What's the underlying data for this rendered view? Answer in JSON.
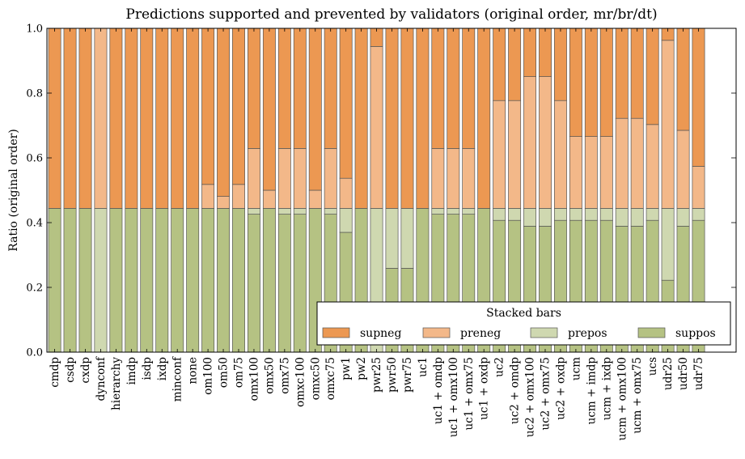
{
  "chart_data": {
    "type": "bar",
    "stacked": true,
    "title": "Predictions supported and prevented by validators (original order, mr/br/dt)",
    "xlabel": "",
    "ylabel": "Ratio (original order)",
    "ylim": [
      0,
      1
    ],
    "yticks": [
      "0.0",
      "0.2",
      "0.4",
      "0.6",
      "0.8",
      "1.0"
    ],
    "grid": false,
    "legend": {
      "title": "Stacked bars",
      "placement": "bottom-right"
    },
    "categories": [
      "cmdp",
      "csdp",
      "cxdp",
      "dynconf",
      "hierarchy",
      "imdp",
      "isdp",
      "ixdp",
      "minconf",
      "none",
      "om100",
      "om50",
      "om75",
      "omx100",
      "omx50",
      "omx75",
      "omxc100",
      "omxc50",
      "omxc75",
      "pw1",
      "pw2",
      "pwr25",
      "pwr50",
      "pwr75",
      "uc1",
      "uc1 + omdp",
      "uc1 + omx100",
      "uc1 + omx75",
      "uc1 + oxdp",
      "uc2",
      "uc2 + omdp",
      "uc2 + omx100",
      "uc2 + omx75",
      "uc2 + oxdp",
      "ucm",
      "ucm + imdp",
      "ucm + ixdp",
      "ucm + omx100",
      "ucm + omx75",
      "ucs",
      "udr25",
      "udr50",
      "udr75"
    ],
    "series": [
      {
        "name": "suppos",
        "color": "#b5c283",
        "values": [
          0.444,
          0.444,
          0.444,
          0,
          0.444,
          0.444,
          0.444,
          0.444,
          0.444,
          0.444,
          0.444,
          0.444,
          0.444,
          0.426,
          0.444,
          0.426,
          0.426,
          0.444,
          0.426,
          0.37,
          0.444,
          0,
          0.259,
          0.259,
          0.444,
          0.426,
          0.426,
          0.426,
          0.444,
          0.407,
          0.407,
          0.389,
          0.389,
          0.407,
          0.407,
          0.407,
          0.407,
          0.389,
          0.389,
          0.407,
          0.222,
          0.389,
          0.407
        ]
      },
      {
        "name": "prepos",
        "color": "#cfd8b0",
        "values": [
          0,
          0,
          0,
          0.444,
          0,
          0,
          0,
          0,
          0,
          0,
          0,
          0,
          0,
          0.018,
          0,
          0.018,
          0.018,
          0,
          0.018,
          0.074,
          0,
          0.444,
          0.185,
          0.185,
          0,
          0.018,
          0.018,
          0.018,
          0,
          0.037,
          0.037,
          0.055,
          0.055,
          0.037,
          0.037,
          0.037,
          0.037,
          0.055,
          0.055,
          0.037,
          0.222,
          0.055,
          0.037
        ]
      },
      {
        "name": "preneg",
        "color": "#f3b889",
        "values": [
          0,
          0,
          0,
          0.556,
          0,
          0,
          0,
          0,
          0,
          0,
          0.074,
          0.037,
          0.074,
          0.185,
          0.056,
          0.185,
          0.185,
          0.056,
          0.185,
          0.093,
          0,
          0.5,
          0,
          0,
          0,
          0.185,
          0.185,
          0.185,
          0,
          0.333,
          0.333,
          0.407,
          0.407,
          0.333,
          0.222,
          0.222,
          0.222,
          0.278,
          0.278,
          0.259,
          0.519,
          0.241,
          0.13
        ]
      },
      {
        "name": "supneg",
        "color": "#ec9852",
        "values": [
          0.556,
          0.556,
          0.556,
          0,
          0.556,
          0.556,
          0.556,
          0.556,
          0.556,
          0.556,
          0.482,
          0.519,
          0.482,
          0.371,
          0.5,
          0.371,
          0.371,
          0.5,
          0.371,
          0.463,
          0.556,
          0.056,
          0.556,
          0.556,
          0.556,
          0.371,
          0.371,
          0.371,
          0.556,
          0.223,
          0.223,
          0.149,
          0.149,
          0.223,
          0.334,
          0.334,
          0.334,
          0.278,
          0.278,
          0.297,
          0.037,
          0.315,
          0.426
        ]
      }
    ]
  }
}
